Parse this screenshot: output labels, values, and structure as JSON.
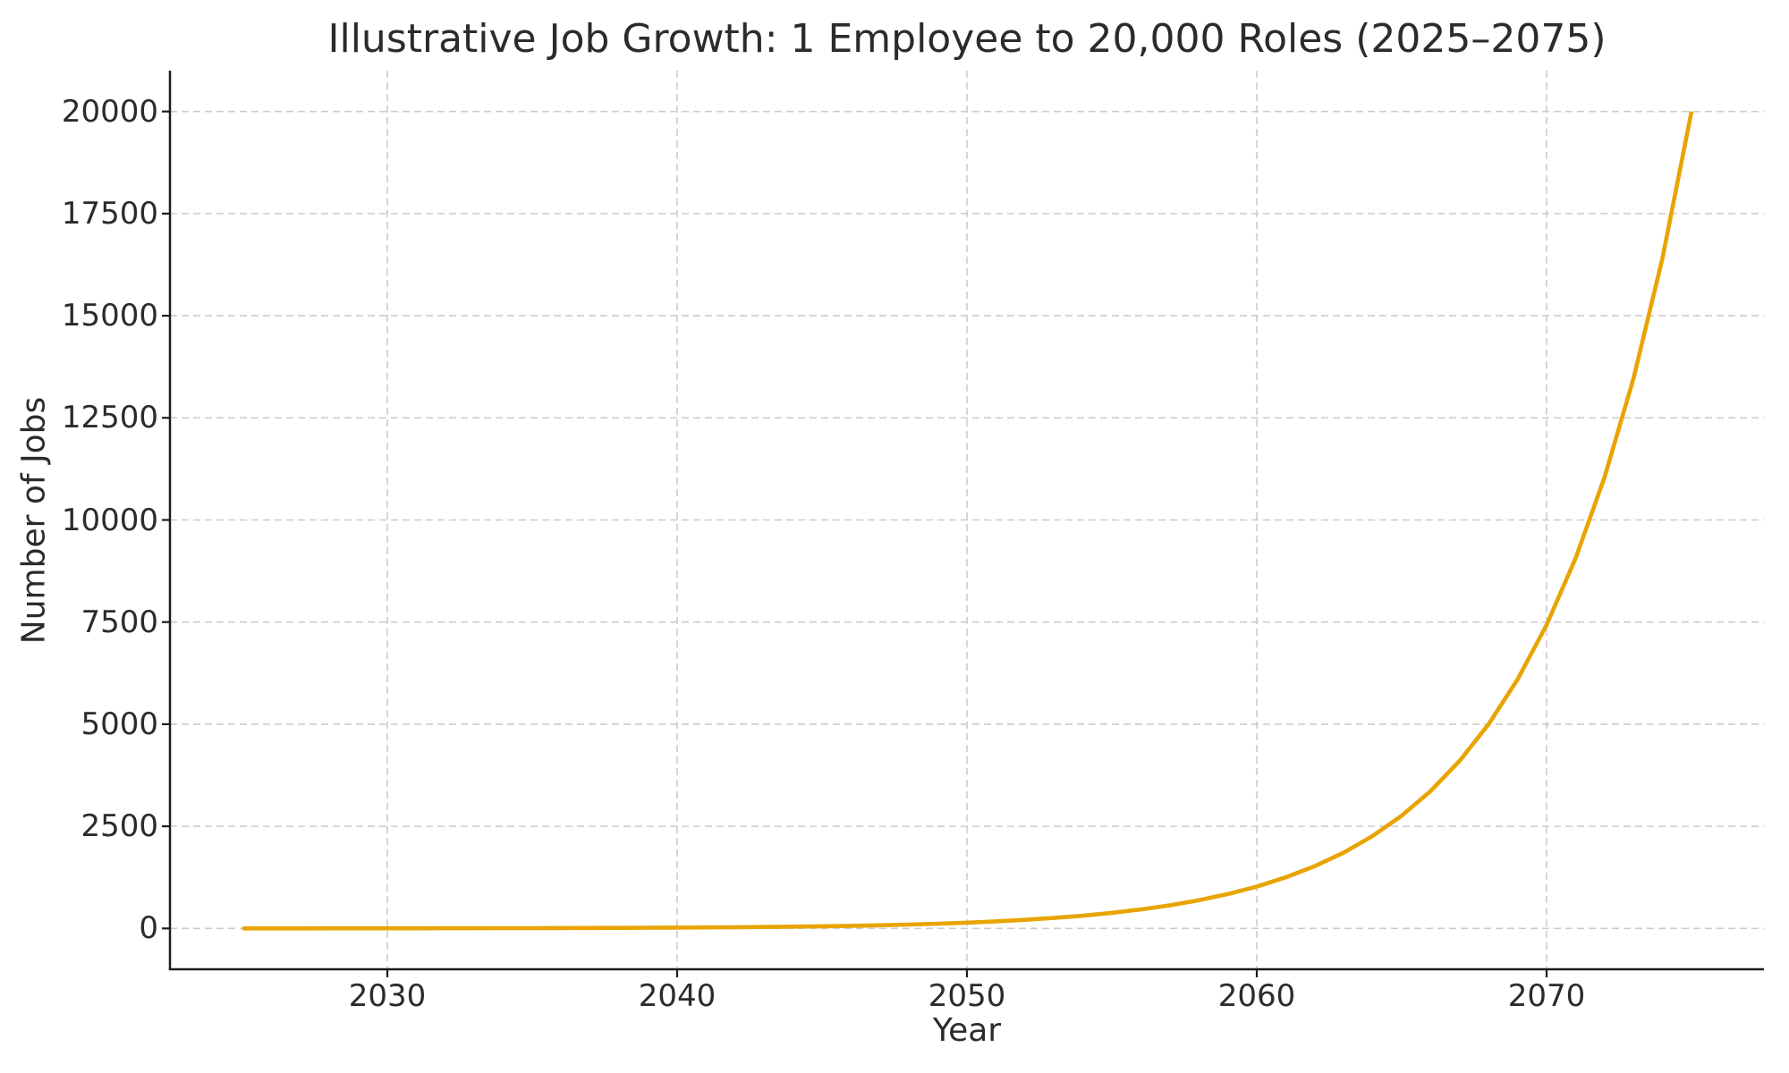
{
  "page": {
    "background_color": "#ffffff",
    "text_color": "#2b2b2b"
  },
  "chart_data": {
    "type": "line",
    "title": "Illustrative Job Growth: 1 Employee to 20,000 Roles (2025–2075)",
    "xlabel": "Year",
    "ylabel": "Number of Jobs",
    "x_ticks": [
      2030,
      2040,
      2050,
      2060,
      2070
    ],
    "y_ticks": [
      0,
      2500,
      5000,
      7500,
      10000,
      12500,
      15000,
      17500,
      20000
    ],
    "x_range_displayed": [
      2022.5,
      2077.5
    ],
    "y_range_displayed": [
      -1000,
      21000
    ],
    "grid": {
      "visible": true,
      "style": "dashed",
      "color": "#cccccc"
    },
    "legend_position": "none",
    "axis_color": "#1c1c1c",
    "series": [
      {
        "name": "jobs",
        "color": "#E8A400",
        "x": [
          2025,
          2026,
          2027,
          2028,
          2029,
          2030,
          2031,
          2032,
          2033,
          2034,
          2035,
          2036,
          2037,
          2038,
          2039,
          2040,
          2041,
          2042,
          2043,
          2044,
          2045,
          2046,
          2047,
          2048,
          2049,
          2050,
          2051,
          2052,
          2053,
          2054,
          2055,
          2056,
          2057,
          2058,
          2059,
          2060,
          2061,
          2062,
          2063,
          2064,
          2065,
          2066,
          2067,
          2068,
          2069,
          2070,
          2071,
          2072,
          2073,
          2074,
          2075
        ],
        "y": [
          1,
          1.22,
          1.49,
          1.81,
          2.21,
          2.69,
          3.28,
          4.0,
          4.88,
          5.94,
          7.25,
          8.83,
          10.77,
          13.13,
          16.01,
          19.51,
          23.79,
          29.0,
          35.35,
          43.09,
          52.54,
          64.04,
          78.07,
          95.17,
          116.0,
          141.5,
          172.4,
          210.2,
          256.2,
          312.3,
          380.9,
          464.3,
          566.1,
          690.1,
          841.3,
          1025,
          1249.6,
          1523.4,
          1857.2,
          2264.1,
          2760.1,
          3364.9,
          4102.2,
          5001.1,
          6096.9,
          7432.2,
          9060.8,
          11046,
          13466,
          16417,
          20000
        ]
      }
    ]
  }
}
